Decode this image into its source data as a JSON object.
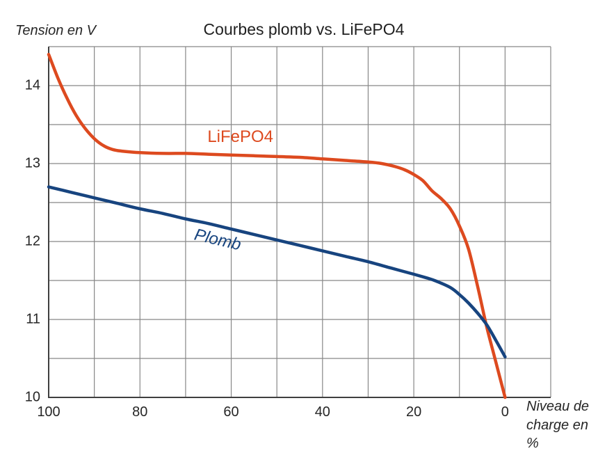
{
  "chart_data": {
    "type": "line",
    "title": "Courbes plomb vs. LiFePO4",
    "ylabel": "Tension en V",
    "xlabel": "Niveau de charge en %",
    "xlabel_lines": [
      "Niveau de",
      "charge en %"
    ],
    "grid": true,
    "legend_position": "inline-curve-labels",
    "x_axis": {
      "min": -10,
      "max": 100,
      "grid_step": 10,
      "reversed": true,
      "tick_values": [
        100,
        80,
        60,
        40,
        20,
        0
      ],
      "tick_labels": [
        "100",
        "80",
        "60",
        "40",
        "20",
        "0"
      ]
    },
    "y_axis": {
      "min": 10,
      "max": 14.5,
      "grid_step": 0.5,
      "tick_values": [
        14,
        13,
        12,
        11,
        10
      ],
      "tick_labels": [
        "14",
        "13",
        "12",
        "11",
        "10"
      ]
    },
    "series": [
      {
        "name": "LiFePO4",
        "color": "#DD4A1F",
        "label_anchor": {
          "x": 58,
          "y": 13.34
        },
        "label_rotation_deg": 0,
        "label_italic": false,
        "points": [
          [
            100,
            14.4
          ],
          [
            98,
            14.1
          ],
          [
            96,
            13.84
          ],
          [
            94,
            13.62
          ],
          [
            92,
            13.45
          ],
          [
            90,
            13.32
          ],
          [
            88,
            13.23
          ],
          [
            86,
            13.18
          ],
          [
            84,
            13.16
          ],
          [
            80,
            13.14
          ],
          [
            75,
            13.13
          ],
          [
            70,
            13.13
          ],
          [
            65,
            13.12
          ],
          [
            60,
            13.11
          ],
          [
            55,
            13.1
          ],
          [
            50,
            13.09
          ],
          [
            45,
            13.08
          ],
          [
            40,
            13.06
          ],
          [
            35,
            13.04
          ],
          [
            30,
            13.02
          ],
          [
            27,
            13.0
          ],
          [
            24,
            12.96
          ],
          [
            22,
            12.92
          ],
          [
            20,
            12.86
          ],
          [
            18,
            12.78
          ],
          [
            16,
            12.65
          ],
          [
            14,
            12.55
          ],
          [
            12,
            12.42
          ],
          [
            10,
            12.2
          ],
          [
            8,
            11.9
          ],
          [
            6,
            11.42
          ],
          [
            4,
            10.9
          ],
          [
            2,
            10.45
          ],
          [
            0,
            10.0
          ]
        ]
      },
      {
        "name": "Plomb",
        "color": "#17447F",
        "label_anchor": {
          "x": 63,
          "y": 12.02
        },
        "label_rotation_deg": 13,
        "label_italic": true,
        "points": [
          [
            100,
            12.7
          ],
          [
            95,
            12.63
          ],
          [
            90,
            12.56
          ],
          [
            85,
            12.49
          ],
          [
            80,
            12.42
          ],
          [
            75,
            12.36
          ],
          [
            70,
            12.29
          ],
          [
            65,
            12.23
          ],
          [
            60,
            12.16
          ],
          [
            55,
            12.09
          ],
          [
            50,
            12.02
          ],
          [
            45,
            11.95
          ],
          [
            40,
            11.88
          ],
          [
            35,
            11.81
          ],
          [
            30,
            11.74
          ],
          [
            25,
            11.66
          ],
          [
            20,
            11.58
          ],
          [
            17,
            11.53
          ],
          [
            15,
            11.49
          ],
          [
            12,
            11.41
          ],
          [
            10,
            11.32
          ],
          [
            8,
            11.21
          ],
          [
            6,
            11.08
          ],
          [
            4,
            10.93
          ],
          [
            2,
            10.73
          ],
          [
            0,
            10.52
          ]
        ]
      }
    ],
    "colors": {
      "gridline": "#878787",
      "axis_line": "#3F3F3F",
      "text": "#262626",
      "background": "#FFFFFF"
    }
  }
}
